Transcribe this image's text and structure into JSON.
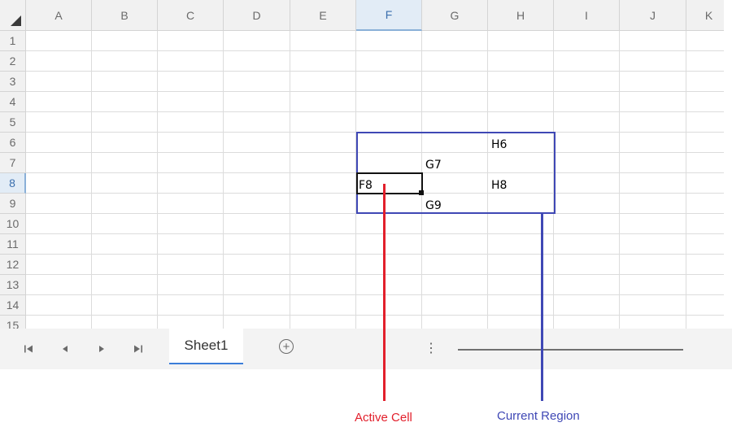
{
  "columns": [
    "A",
    "B",
    "C",
    "D",
    "E",
    "F",
    "G",
    "H",
    "I",
    "J",
    "K"
  ],
  "rows": [
    "1",
    "2",
    "3",
    "4",
    "5",
    "6",
    "7",
    "8",
    "9",
    "10",
    "11",
    "12",
    "13",
    "14",
    "15"
  ],
  "active_column": "F",
  "active_row": "8",
  "cells": {
    "h6": "H6",
    "g7": "G7",
    "f8": "F8",
    "h8": "H8",
    "g9": "G9"
  },
  "sheet_tabs": [
    {
      "label": "Sheet1",
      "selected": true
    }
  ],
  "annotations": {
    "active_cell": "Active Cell",
    "current_region": "Current Region"
  },
  "colors": {
    "active_cell_pointer": "#e21f2b",
    "current_region_box": "#3f48b5",
    "tab_underline": "#3b7dd8"
  },
  "icons": {
    "first_sheet": "first-sheet-icon",
    "prev_sheet": "prev-sheet-icon",
    "next_sheet": "next-sheet-icon",
    "last_sheet": "last-sheet-icon",
    "add_sheet": "add-sheet-icon",
    "more": "more-options-icon"
  }
}
